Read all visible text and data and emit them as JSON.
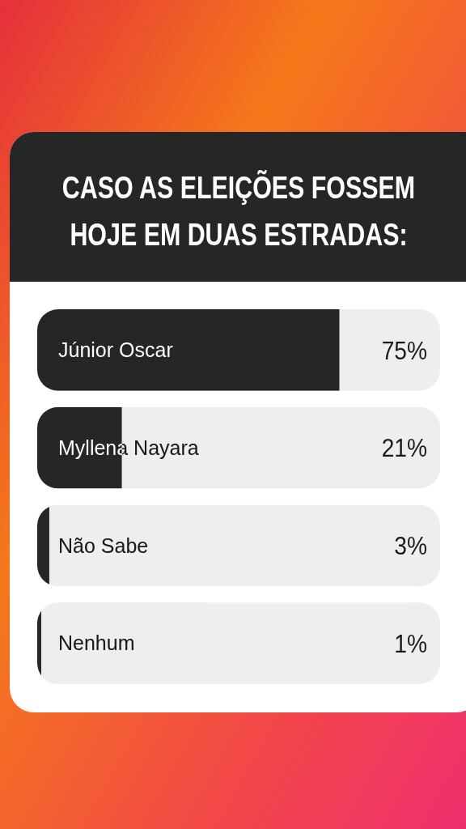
{
  "chart_data": {
    "type": "bar",
    "orientation": "horizontal",
    "title": "CASO AS ELEIÇÕES FOSSEM\nHOJE EM DUAS ESTRADAS:",
    "categories": [
      "Júnior Oscar",
      "Myllena Nayara",
      "Não Sabe",
      "Nenhum"
    ],
    "values": [
      75,
      21,
      3,
      1
    ],
    "value_labels": [
      "75%",
      "21%",
      "3%",
      "1%"
    ],
    "color": "#262626",
    "xlim": [
      0,
      100
    ]
  }
}
